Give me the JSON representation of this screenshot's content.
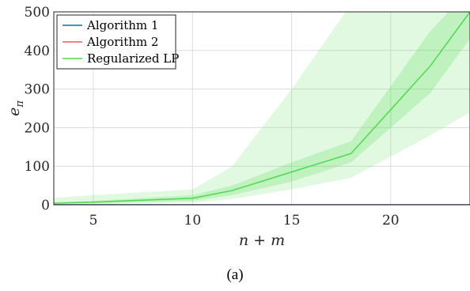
{
  "chart_data": {
    "type": "line",
    "xlabel": "n + m",
    "ylabel": "e_π",
    "ylabel_main": "e",
    "ylabel_sub": "π",
    "xlim": [
      3,
      24
    ],
    "ylim": [
      0,
      500
    ],
    "xticks": [
      5,
      10,
      15,
      20
    ],
    "yticks": [
      0,
      100,
      200,
      300,
      400,
      500
    ],
    "grid": true,
    "legend_position": "top-left",
    "series": [
      {
        "name": "Algorithm 1",
        "color": "#0072BD",
        "x": [
          3,
          5,
          10,
          12,
          15,
          18,
          22,
          24
        ],
        "y": [
          0,
          0,
          0,
          0,
          0,
          0,
          0,
          0
        ]
      },
      {
        "name": "Algorithm 2",
        "color": "#F2585F",
        "x": [
          3,
          5,
          10,
          12,
          15,
          18,
          22,
          24
        ],
        "y": [
          0,
          0,
          0,
          0,
          0,
          0,
          0,
          0
        ]
      },
      {
        "name": "Regularized LP",
        "color": "#4CD94C",
        "x": [
          3,
          5,
          10,
          12,
          15,
          18,
          22,
          24
        ],
        "y": [
          4,
          7,
          17,
          37,
          85,
          133,
          360,
          500
        ],
        "band_inner_upper": [
          6,
          10,
          25,
          50,
          110,
          165,
          450,
          560
        ],
        "band_inner_lower": [
          2,
          4,
          10,
          25,
          60,
          110,
          290,
          430
        ],
        "band_outer_upper": [
          18,
          25,
          40,
          100,
          300,
          520,
          700,
          800
        ],
        "band_outer_lower": [
          0,
          1,
          5,
          15,
          40,
          70,
          180,
          240
        ]
      }
    ]
  },
  "caption": "(a)"
}
